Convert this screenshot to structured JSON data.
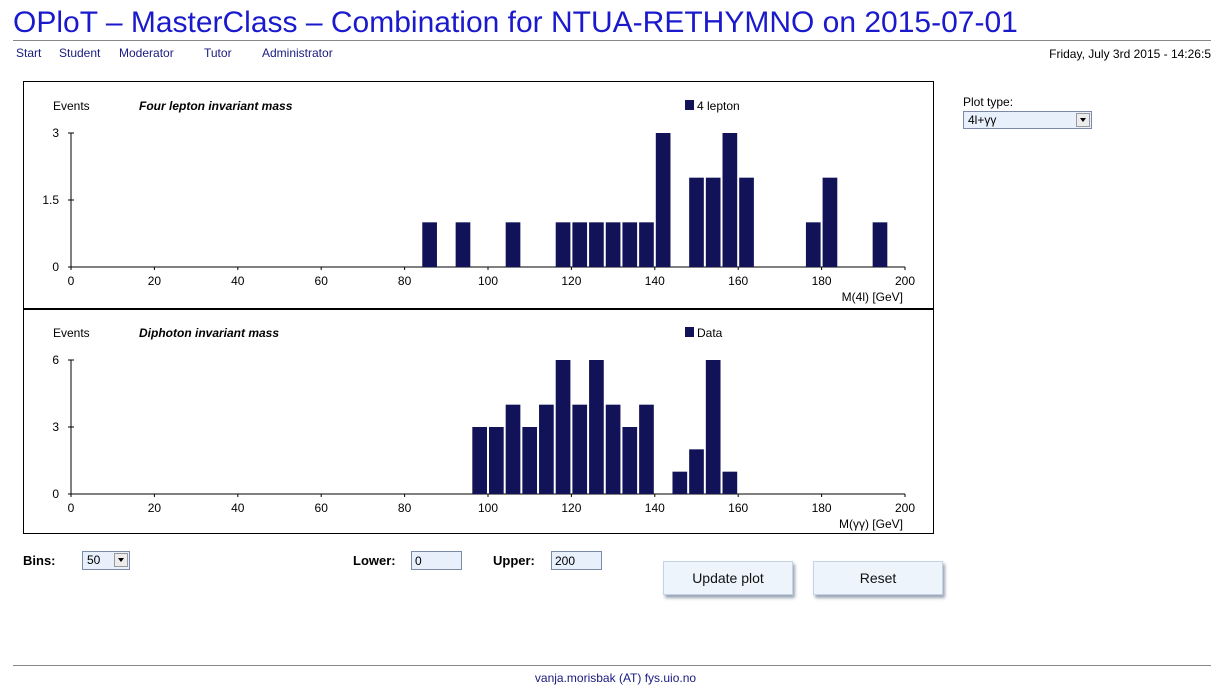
{
  "header": {
    "title": "OPloT – MasterClass – Combination for NTUA-RETHYMNO on 2015-07-01",
    "datetime": "Friday, July 3rd 2015 - 14:26:5"
  },
  "nav": {
    "items": [
      "Start",
      "Student",
      "Moderator",
      "Tutor",
      "Administrator"
    ]
  },
  "plot_type": {
    "label": "Plot type:",
    "value": "4l+γγ"
  },
  "controls": {
    "bins_label": "Bins:",
    "bins_value": "50",
    "lower_label": "Lower:",
    "lower_value": "0",
    "upper_label": "Upper:",
    "upper_value": "200",
    "update_button": "Update plot",
    "reset_button": "Reset"
  },
  "footer": {
    "text": "vanja.morisbak (AT) fys.uio.no"
  },
  "colors": {
    "bar": "#121258",
    "title": "#1a1acc",
    "link": "#1a1a80"
  },
  "chart_data": [
    {
      "type": "bar",
      "title": "Four lepton invariant mass",
      "ylabel": "Events",
      "xlabel": "M(4l) [GeV]",
      "legend": "4 lepton",
      "legend_position": "top-right",
      "xlim": [
        0,
        200
      ],
      "ylim": [
        0,
        3
      ],
      "bin_width": 4,
      "x_ticks": [
        "0",
        "20",
        "40",
        "60",
        "80",
        "100",
        "120",
        "140",
        "160",
        "180",
        "200"
      ],
      "y_ticks": [
        "0",
        "1.5",
        "3"
      ],
      "series": [
        {
          "name": "4 lepton",
          "x": [
            84,
            92,
            104,
            116,
            120,
            124,
            128,
            132,
            136,
            140,
            148,
            152,
            156,
            160,
            176,
            180,
            192
          ],
          "values": [
            1,
            1,
            1,
            1,
            1,
            1,
            1,
            1,
            1,
            3,
            2,
            2,
            3,
            2,
            1,
            2,
            1
          ]
        }
      ]
    },
    {
      "type": "bar",
      "title": "Diphoton invariant mass",
      "ylabel": "Events",
      "xlabel": "M(γγ) [GeV]",
      "legend": "Data",
      "legend_position": "top-right",
      "xlim": [
        0,
        200
      ],
      "ylim": [
        0,
        6
      ],
      "bin_width": 4,
      "x_ticks": [
        "0",
        "20",
        "40",
        "60",
        "80",
        "100",
        "120",
        "140",
        "160",
        "180",
        "200"
      ],
      "y_ticks": [
        "0",
        "3",
        "6"
      ],
      "series": [
        {
          "name": "Data",
          "x": [
            96,
            100,
            104,
            108,
            112,
            116,
            120,
            124,
            128,
            132,
            136,
            144,
            148,
            152,
            156
          ],
          "values": [
            3,
            3,
            4,
            3,
            4,
            6,
            4,
            6,
            4,
            3,
            4,
            1,
            2,
            6,
            1
          ]
        }
      ]
    }
  ]
}
